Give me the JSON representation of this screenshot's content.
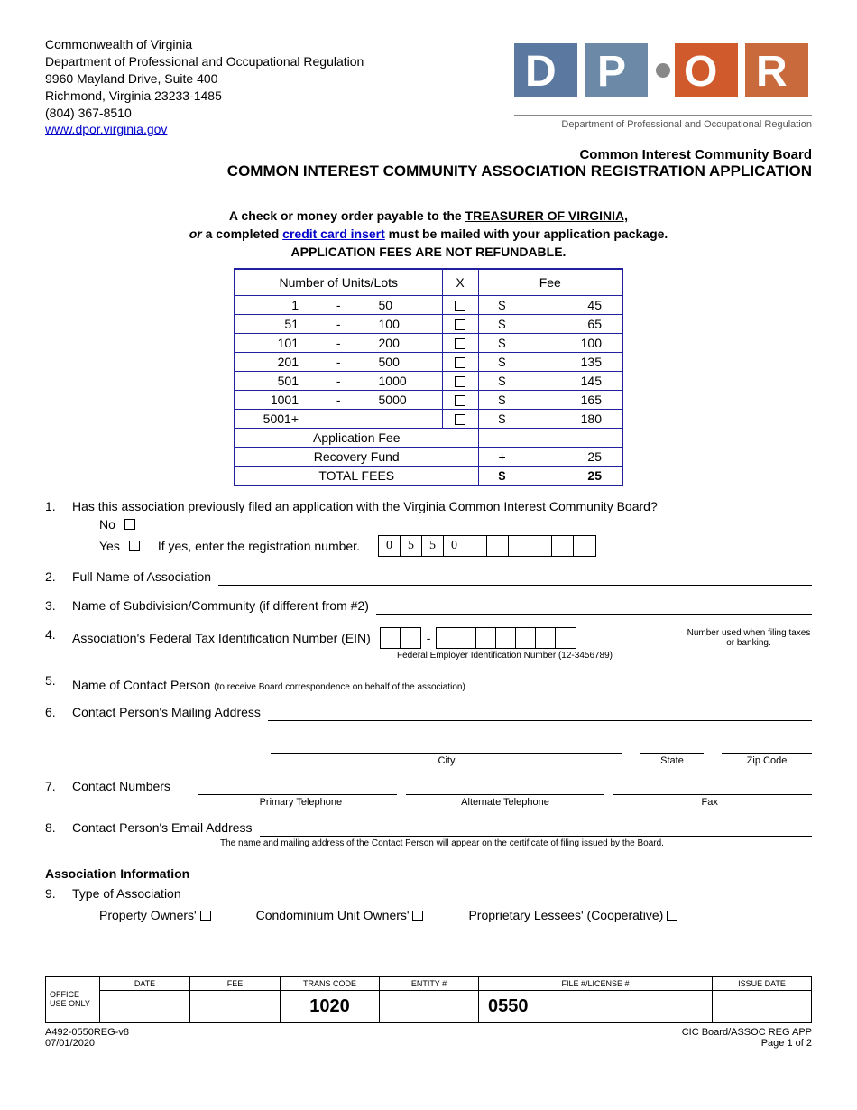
{
  "header": {
    "line1": "Commonwealth of Virginia",
    "line2": "Department of Professional and Occupational Regulation",
    "line3": "9960 Mayland Drive, Suite 400",
    "line4": "Richmond, Virginia 23233-1485",
    "phone": "(804) 367-8510",
    "url": "www.dpor.virginia.gov",
    "logo_caption": "Department of Professional and Occupational Regulation",
    "logo_colors": {
      "d": "#5a78a0",
      "p": "#6c8aa8",
      "o": "#d05a2c",
      "r": "#c86a3c",
      "text": "#666"
    }
  },
  "title": {
    "sub": "Common Interest Community Board",
    "main": "COMMON INTEREST COMMUNITY ASSOCIATION REGISTRATION APPLICATION"
  },
  "fee_intro": {
    "line1_a": "A check or money order payable to the ",
    "line1_b": "TREASURER OF VIRGINIA,",
    "line2_a": "or",
    "line2_b": " a completed ",
    "line2_link": "credit card insert",
    "line2_c": " must be mailed with your application package.",
    "line3": "APPLICATION FEES ARE NOT REFUNDABLE."
  },
  "fee_table": {
    "border_color": "#2020a0",
    "col_units": "Number of Units/Lots",
    "col_x": "X",
    "col_fee": "Fee",
    "rows": [
      {
        "low": "1",
        "high": "50",
        "fee": "45"
      },
      {
        "low": "51",
        "high": "100",
        "fee": "65"
      },
      {
        "low": "101",
        "high": "200",
        "fee": "100"
      },
      {
        "low": "201",
        "high": "500",
        "fee": "135"
      },
      {
        "low": "501",
        "high": "1000",
        "fee": "145"
      },
      {
        "low": "1001",
        "high": "5000",
        "fee": "165"
      },
      {
        "low": "5001+",
        "high": "",
        "fee": "180"
      }
    ],
    "dash": "-",
    "currency": "$",
    "app_fee_label": "Application Fee",
    "recovery_label": "Recovery Fund",
    "recovery_plus": "+",
    "recovery_amount": "25",
    "total_label": "TOTAL FEES",
    "total_currency": "$",
    "total_amount": "25"
  },
  "questions": {
    "q1": {
      "num": "1.",
      "text": "Has this association previously filed an application with the Virginia Common Interest Community Board?",
      "no": "No",
      "yes": "Yes",
      "yes_prompt": "If yes, enter the registration number.",
      "reg_digits": [
        "0",
        "5",
        "5",
        "0",
        "",
        "",
        "",
        "",
        "",
        ""
      ]
    },
    "q2": {
      "num": "2.",
      "text": "Full Name of Association"
    },
    "q3": {
      "num": "3.",
      "text": "Name of Subdivision/Community (if different from #2)"
    },
    "q4": {
      "num": "4.",
      "text": "Association's Federal Tax Identification Number (EIN)",
      "caption": "Federal Employer Identification Number (12-3456789)",
      "note": "Number used when filing taxes or banking.",
      "dash": "-"
    },
    "q5": {
      "num": "5.",
      "text": "Name of Contact Person",
      "note": "(to receive Board correspondence on behalf of the association)"
    },
    "q6": {
      "num": "6.",
      "text": "Contact Person's Mailing Address",
      "city": "City",
      "state": "State",
      "zip": "Zip Code"
    },
    "q7": {
      "num": "7.",
      "text": "Contact Numbers",
      "primary": "Primary Telephone",
      "alternate": "Alternate Telephone",
      "fax": "Fax"
    },
    "q8": {
      "num": "8.",
      "text": "Contact Person's Email Address",
      "note": "The name and mailing address of the Contact Person will appear on the certificate of filing issued by the Board."
    }
  },
  "assoc_info": {
    "heading": "Association Information",
    "q9_num": "9.",
    "q9_text": "Type of Association",
    "type1": "Property Owners'",
    "type2": "Condominium Unit Owners'",
    "type3": "Proprietary Lessees' (Cooperative)"
  },
  "footer": {
    "office": "OFFICE USE ONLY",
    "cols": {
      "date": "DATE",
      "fee": "FEE",
      "trans": "TRANS CODE",
      "entity": "ENTITY #",
      "file": "FILE #/LICENSE #",
      "issue": "ISSUE DATE"
    },
    "trans_val": "1020",
    "file_val": "0550",
    "form_id": "A492-0550REG-v8",
    "form_date": "07/01/2020",
    "right1": "CIC Board/ASSOC REG APP",
    "right2": "Page 1 of 2"
  }
}
